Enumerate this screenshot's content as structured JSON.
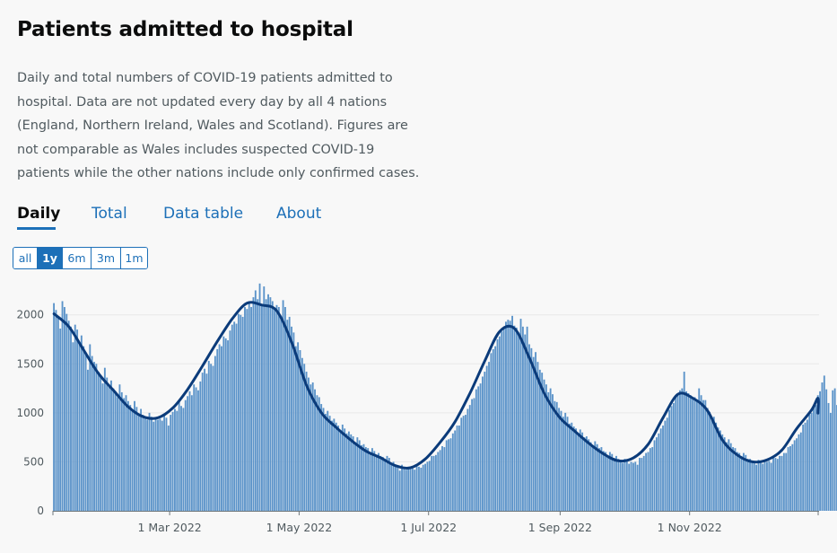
{
  "heading": "Patients admitted to hospital",
  "description": "Daily and total numbers of COVID-19 patients admitted to hospital. Data are not updated every day by all 4 nations (England, Northern Ireland, Wales and Scotland). Figures are not comparable as Wales includes suspected COVID-19 patients while the other nations include only confirmed cases.",
  "tabs": [
    {
      "label": "Daily",
      "active": true
    },
    {
      "label": "Total",
      "active": false
    },
    {
      "label": "Data table",
      "active": false
    },
    {
      "label": "About",
      "active": false
    }
  ],
  "range_buttons": [
    {
      "label": "all",
      "active": false
    },
    {
      "label": "1y",
      "active": true
    },
    {
      "label": "6m",
      "active": false
    },
    {
      "label": "3m",
      "active": false
    },
    {
      "label": "1m",
      "active": false
    }
  ],
  "colors": {
    "bars": "#5b93c9",
    "average_line": "#0b3b7a",
    "link": "#1d70b8",
    "gridline": "#e8e8e8"
  },
  "chart_data": {
    "type": "bar",
    "x_start": "2022-01-05",
    "x_end": "2022-12-31",
    "ylim": [
      0,
      2300
    ],
    "y_ticks": [
      0,
      500,
      1000,
      1500,
      2000
    ],
    "x_ticks": [
      "1 Mar 2022",
      "1 May 2022",
      "1 Jul 2022",
      "1 Sep 2022",
      "1 Nov 2022"
    ],
    "grid": true,
    "series": [
      {
        "type": "bar",
        "step_days": 1,
        "approximate_values_by_week": [
          [
            2120,
            2050,
            1980,
            1860,
            2140,
            2080,
            2010
          ],
          [
            1940,
            1880,
            1720,
            1900,
            1850,
            1700,
            1790
          ],
          [
            1680,
            1620,
            1440,
            1700,
            1580,
            1520,
            1500
          ],
          [
            1420,
            1380,
            1300,
            1460,
            1360,
            1290,
            1330
          ],
          [
            1250,
            1220,
            1160,
            1290,
            1210,
            1150,
            1180
          ],
          [
            1120,
            1080,
            1020,
            1120,
            1060,
            990,
            1040
          ],
          [
            980,
            960,
            930,
            1000,
            960,
            910,
            940
          ],
          [
            930,
            940,
            920,
            990,
            950,
            870,
            980
          ],
          [
            1010,
            1040,
            1020,
            1120,
            1070,
            1050,
            1130
          ],
          [
            1170,
            1220,
            1180,
            1290,
            1260,
            1230,
            1320
          ],
          [
            1410,
            1450,
            1400,
            1530,
            1500,
            1480,
            1580
          ],
          [
            1650,
            1700,
            1680,
            1780,
            1760,
            1740,
            1840
          ],
          [
            1900,
            1930,
            1910,
            2010,
            2000,
            1980,
            2080
          ],
          [
            2060,
            2120,
            2080,
            2180,
            2250,
            2160,
            2320
          ],
          [
            2090,
            2290,
            2160,
            2210,
            2180,
            2140,
            2060
          ],
          [
            2100,
            2080,
            1990,
            2150,
            2080,
            1950,
            1980
          ],
          [
            1880,
            1820,
            1680,
            1720,
            1640,
            1560,
            1500
          ],
          [
            1420,
            1360,
            1290,
            1310,
            1240,
            1180,
            1160
          ],
          [
            1090,
            1050,
            990,
            1020,
            970,
            920,
            940
          ],
          [
            900,
            870,
            820,
            880,
            840,
            790,
            810
          ],
          [
            780,
            760,
            700,
            750,
            720,
            670,
            680
          ],
          [
            650,
            640,
            600,
            640,
            610,
            570,
            590
          ],
          [
            560,
            550,
            510,
            560,
            540,
            480,
            500
          ],
          [
            460,
            450,
            410,
            470,
            450,
            420,
            440
          ],
          [
            430,
            440,
            420,
            470,
            450,
            440,
            470
          ],
          [
            480,
            500,
            510,
            560,
            560,
            570,
            600
          ],
          [
            620,
            660,
            650,
            720,
            730,
            740,
            790
          ],
          [
            820,
            870,
            870,
            950,
            970,
            980,
            1040
          ],
          [
            1080,
            1140,
            1150,
            1240,
            1270,
            1300,
            1370
          ],
          [
            1420,
            1480,
            1520,
            1610,
            1650,
            1680,
            1750
          ],
          [
            1780,
            1830,
            1860,
            1930,
            1950,
            1940,
            1990
          ],
          [
            1890,
            1870,
            1820,
            1960,
            1880,
            1800,
            1880
          ],
          [
            1700,
            1660,
            1570,
            1620,
            1520,
            1440,
            1410
          ],
          [
            1340,
            1290,
            1210,
            1250,
            1190,
            1120,
            1110
          ],
          [
            1050,
            1020,
            960,
            1000,
            960,
            890,
            900
          ],
          [
            860,
            840,
            790,
            830,
            800,
            750,
            760
          ],
          [
            730,
            700,
            660,
            710,
            680,
            640,
            650
          ],
          [
            610,
            600,
            560,
            600,
            580,
            540,
            560
          ],
          [
            530,
            520,
            490,
            530,
            510,
            480,
            500
          ],
          [
            490,
            500,
            470,
            540,
            540,
            560,
            590
          ],
          [
            600,
            640,
            650,
            720,
            750,
            790,
            840
          ],
          [
            870,
            920,
            950,
            1030,
            1070,
            1100,
            1160
          ],
          [
            1190,
            1230,
            1250,
            1420,
            1220,
            1200,
            1180
          ],
          [
            1150,
            1160,
            1120,
            1250,
            1180,
            1130,
            1130
          ],
          [
            1050,
            1010,
            940,
            960,
            900,
            850,
            820
          ],
          [
            780,
            750,
            700,
            730,
            690,
            650,
            640
          ],
          [
            600,
            590,
            560,
            590,
            570,
            530,
            530
          ],
          [
            510,
            500,
            470,
            520,
            510,
            480,
            500
          ],
          [
            500,
            510,
            490,
            540,
            540,
            530,
            560
          ],
          [
            560,
            590,
            590,
            650,
            660,
            680,
            720
          ],
          [
            740,
            780,
            800,
            880,
            900,
            930,
            980
          ],
          [
            1000,
            1050,
            1080,
            1180,
            1220,
            1310,
            1380
          ],
          [
            1240,
            1100,
            1000,
            1230,
            1250,
            1080,
            980
          ],
          [
            730,
            920
          ]
        ]
      },
      {
        "name": "",
        "type": "line",
        "step_days": 7,
        "approximate_values": [
          2010,
          1880,
          1640,
          1400,
          1230,
          1060,
          960,
          950,
          1050,
          1240,
          1480,
          1730,
          1960,
          2120,
          2100,
          2040,
          1720,
          1280,
          1000,
          850,
          720,
          610,
          540,
          460,
          440,
          530,
          700,
          910,
          1200,
          1530,
          1830,
          1860,
          1560,
          1200,
          960,
          820,
          690,
          580,
          510,
          540,
          680,
          950,
          1190,
          1150,
          1020,
          720,
          570,
          500,
          520,
          620,
          840,
          1030,
          1150,
          1010,
          1000
        ]
      }
    ]
  }
}
